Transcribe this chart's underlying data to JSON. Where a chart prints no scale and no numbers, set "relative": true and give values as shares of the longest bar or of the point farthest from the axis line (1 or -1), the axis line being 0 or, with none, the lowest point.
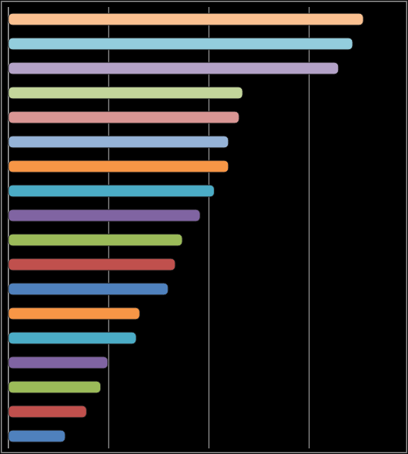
{
  "chart_data": {
    "type": "bar",
    "orientation": "horizontal",
    "relative": true,
    "grid": "x",
    "categories": [
      null,
      null,
      null,
      null,
      null,
      null,
      null,
      null,
      null,
      null,
      null,
      null,
      null,
      null,
      null,
      null,
      null,
      null
    ],
    "values": [
      1,
      0.97,
      0.93,
      0.66,
      0.65,
      0.62,
      0.62,
      0.58,
      0.54,
      0.49,
      0.47,
      0.45,
      0.37,
      0.36,
      0.28,
      0.26,
      0.22,
      0.16
    ],
    "colors": [
      "#fac090",
      "#93cddd",
      "#b3a2c7",
      "#c3d69b",
      "#d99694",
      "#95b3d7",
      "#f79646",
      "#4bacc6",
      "#8064a2",
      "#9bbb59",
      "#c0504d",
      "#4f81bd",
      "#f79646",
      "#4bacc6",
      "#8064a2",
      "#9bbb59",
      "#c0504d",
      "#4f81bd"
    ]
  }
}
